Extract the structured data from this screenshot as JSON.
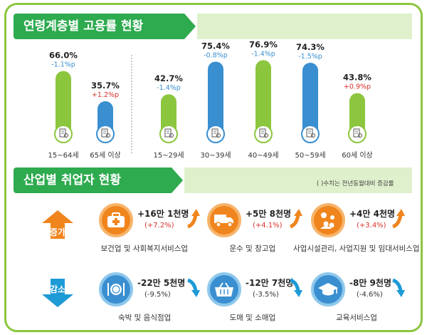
{
  "section1": {
    "title": "연령계층별 고용률 현황"
  },
  "section2": {
    "title": "산업별 취업자 현황",
    "note": "( )수치는 전년동월대비 증감률"
  },
  "colors": {
    "green": "#8cc63f",
    "blue": "#3a8fd0",
    "neg": "#3a8fd0",
    "pos": "#d9302c",
    "orange": "#f0851e",
    "teal": "#1e9ad6"
  },
  "chart_data": {
    "type": "bar",
    "categories": [
      "15~64세",
      "65세 이상",
      "15~29세",
      "30~39세",
      "40~49세",
      "50~59세",
      "60세 이상"
    ],
    "values": [
      66.0,
      35.7,
      42.7,
      75.4,
      76.9,
      74.3,
      43.8
    ],
    "value_labels": [
      "66.0%",
      "35.7%",
      "42.7%",
      "75.4%",
      "76.9%",
      "74.3%",
      "43.8%"
    ],
    "change_labels": [
      "-1.1%p",
      "+1.2%p",
      "-1.4%p",
      "-0.8%p",
      "-1.4%p",
      "-1.5%p",
      "+0.9%p"
    ],
    "bar_colors": [
      "#8cc63f",
      "#3a8fd0",
      "#8cc63f",
      "#3a8fd0",
      "#8cc63f",
      "#3a8fd0",
      "#8cc63f"
    ],
    "ylim": [
      0,
      80
    ],
    "icon": "document-magnifier-icon"
  },
  "industry": {
    "increase_label": "증가",
    "decrease_label": "감소",
    "increase": [
      {
        "name": "보건업 및 사회복지서비스업",
        "value": "+16만 1천명",
        "change": "(+7.2%)",
        "icon": "medical-kit-icon"
      },
      {
        "name": "운수 및 창고업",
        "value": "+5만 8천명",
        "change": "(+4.1%)",
        "icon": "truck-icon"
      },
      {
        "name": "사업시설관리, 사업지원 및 임대서비스업",
        "value": "+4만 4천명",
        "change": "(+3.4%)",
        "icon": "people-gear-icon"
      }
    ],
    "decrease": [
      {
        "name": "숙박 및 음식점업",
        "value": "-22만 5천명",
        "change": "(-9.5%)",
        "icon": "dining-icon"
      },
      {
        "name": "도매 및 소매업",
        "value": "-12만 7천명",
        "change": "(-3.5%)",
        "icon": "shopping-basket-icon"
      },
      {
        "name": "교육서비스업",
        "value": "-8만 9천명",
        "change": "(-4.6%)",
        "icon": "graduation-cap-icon"
      }
    ]
  }
}
